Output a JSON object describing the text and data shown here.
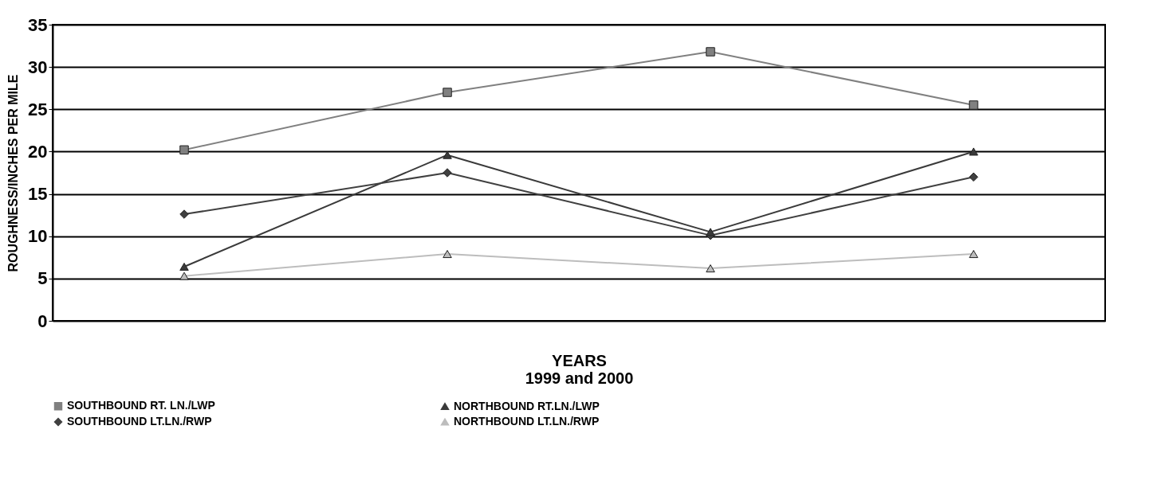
{
  "chart_data": {
    "type": "line",
    "xlabel": "YEARS",
    "ylabel": "ROUGHNESS/INCHES PER MILE",
    "annotations": [
      "1999 and 2000"
    ],
    "categories": [
      null,
      null,
      null,
      null
    ],
    "ylim": [
      0,
      35
    ],
    "yticks": [
      0,
      5,
      10,
      15,
      20,
      25,
      30,
      35
    ],
    "grid": "y",
    "legend": "bottom",
    "series": [
      {
        "name": "SOUTHBOUND RT. LN./LWP",
        "color": "#808080",
        "marker": "square",
        "values": [
          20.2,
          27,
          31.8,
          25.5
        ]
      },
      {
        "name": "NORTHBOUND RT.LN./LWP",
        "color": "#3a3a3a",
        "marker": "triangle",
        "values": [
          6.4,
          19.6,
          10.5,
          20
        ]
      },
      {
        "name": "SOUTHBOUND LT.LN./RWP",
        "color": "#404040",
        "marker": "diamond",
        "values": [
          12.6,
          17.5,
          10.1,
          17
        ]
      },
      {
        "name": "NORTHBOUND LT.LN./RWP",
        "color": "#bdbdbd",
        "marker": "triangle",
        "values": [
          5.3,
          7.9,
          6.2,
          7.9
        ]
      }
    ]
  }
}
